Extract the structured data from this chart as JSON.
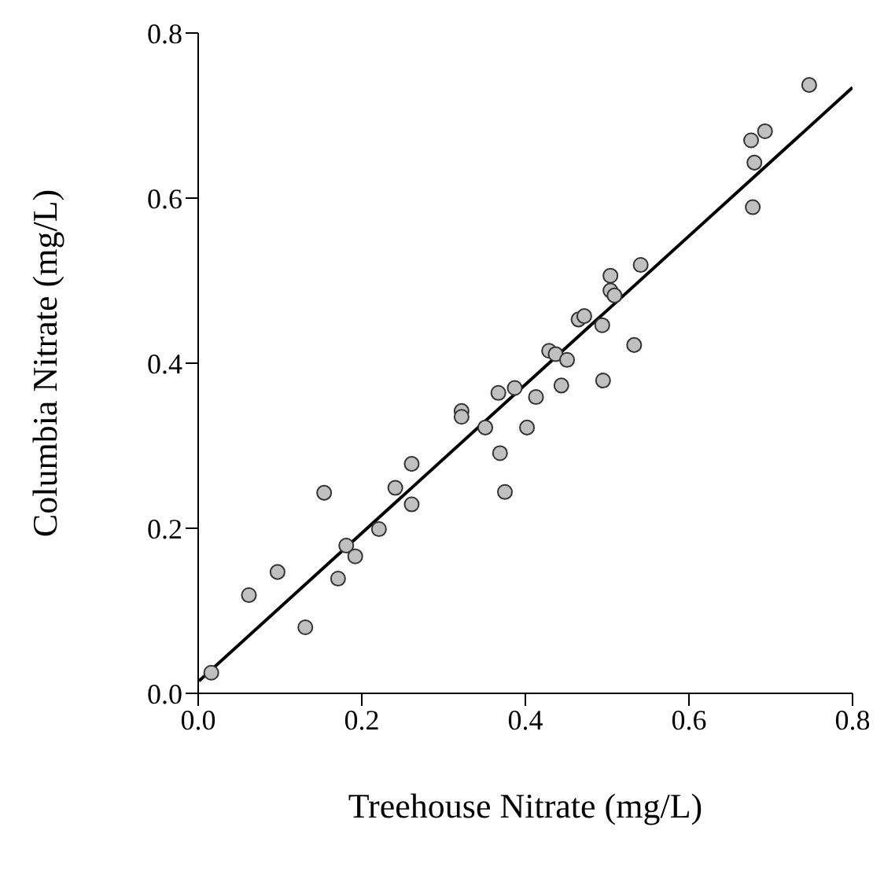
{
  "chart_data": {
    "type": "scatter",
    "xlabel": "Treehouse Nitrate (mg/L)",
    "ylabel": "Columbia Nitrate (mg/L)",
    "xlim": [
      0,
      0.8
    ],
    "ylim": [
      0,
      0.8
    ],
    "xticks": [
      {
        "value": 0,
        "label": "0.0"
      },
      0.2,
      0.4,
      0.6,
      0.8
    ],
    "yticks": [
      {
        "value": 0,
        "label": "0.0"
      },
      0.2,
      0.4,
      0.6,
      0.8
    ],
    "marker": "circle",
    "grid": false,
    "series": [
      {
        "color": "#c0c0c0",
        "x": [
          0.016,
          0.062,
          0.097,
          0.131,
          0.154,
          0.171,
          0.181,
          0.192,
          0.221,
          0.241,
          0.261,
          0.261,
          0.322,
          0.322,
          0.351,
          0.367,
          0.369,
          0.375,
          0.387,
          0.402,
          0.413,
          0.429,
          0.437,
          0.444,
          0.451,
          0.465,
          0.472,
          0.494,
          0.495,
          0.533,
          0.504,
          0.504,
          0.509,
          0.541,
          0.678,
          0.68,
          0.676,
          0.693,
          0.747
        ],
        "values": [
          0.025,
          0.119,
          0.147,
          0.08,
          0.243,
          0.139,
          0.179,
          0.166,
          0.199,
          0.249,
          0.229,
          0.278,
          0.342,
          0.335,
          0.322,
          0.364,
          0.291,
          0.244,
          0.37,
          0.322,
          0.359,
          0.415,
          0.411,
          0.373,
          0.404,
          0.453,
          0.457,
          0.446,
          0.379,
          0.422,
          0.506,
          0.488,
          0.482,
          0.519,
          0.589,
          0.643,
          0.67,
          0.681,
          0.737
        ]
      },
      {
        "type": "line",
        "marker": "none",
        "color": "#000000",
        "x": [
          0.001,
          0.8
        ],
        "values": [
          0.015,
          0.734
        ]
      }
    ]
  }
}
